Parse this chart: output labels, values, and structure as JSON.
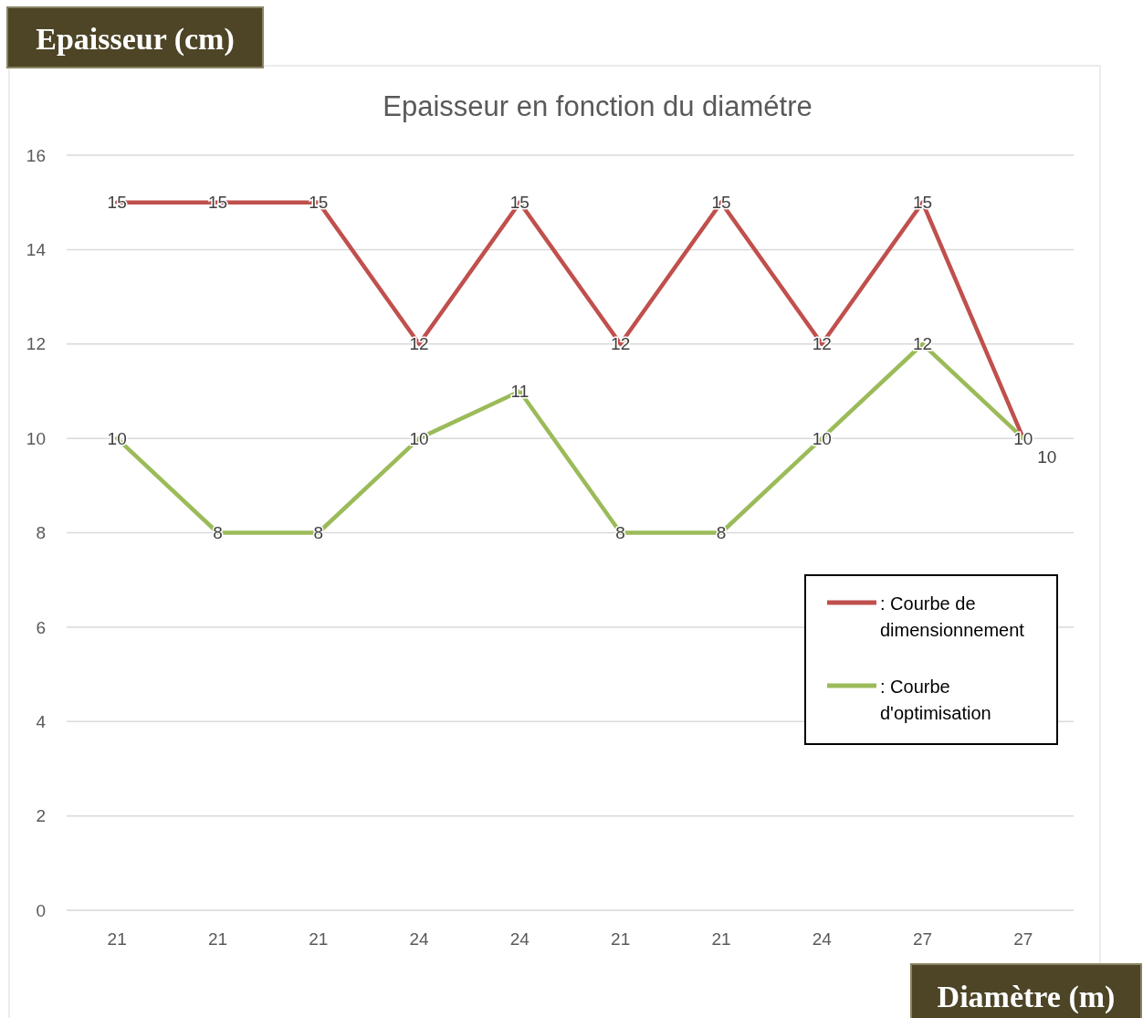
{
  "chart_data": {
    "type": "line",
    "title": "Epaisseur en fonction du diamétre",
    "xlabel": "Diamètre (m)",
    "ylabel": "Epaisseur (cm)",
    "categories": [
      "21",
      "21",
      "21",
      "24",
      "24",
      "21",
      "21",
      "24",
      "27",
      "27"
    ],
    "series": [
      {
        "name": ": Courbe de dimensionnement",
        "color": "#c0504d",
        "values": [
          15,
          15,
          15,
          12,
          15,
          12,
          15,
          12,
          15,
          10
        ]
      },
      {
        "name": ": Courbe d'optimisation",
        "color": "#9bbb59",
        "values": [
          10,
          8,
          8,
          10,
          11,
          8,
          8,
          10,
          12,
          10
        ]
      }
    ],
    "ylim": [
      0,
      16
    ],
    "yticks": [
      0,
      2,
      4,
      6,
      8,
      10,
      12,
      14,
      16
    ],
    "grid": "y",
    "legend": "right",
    "data_labels": true,
    "marker": "none",
    "line_style": "solid"
  }
}
